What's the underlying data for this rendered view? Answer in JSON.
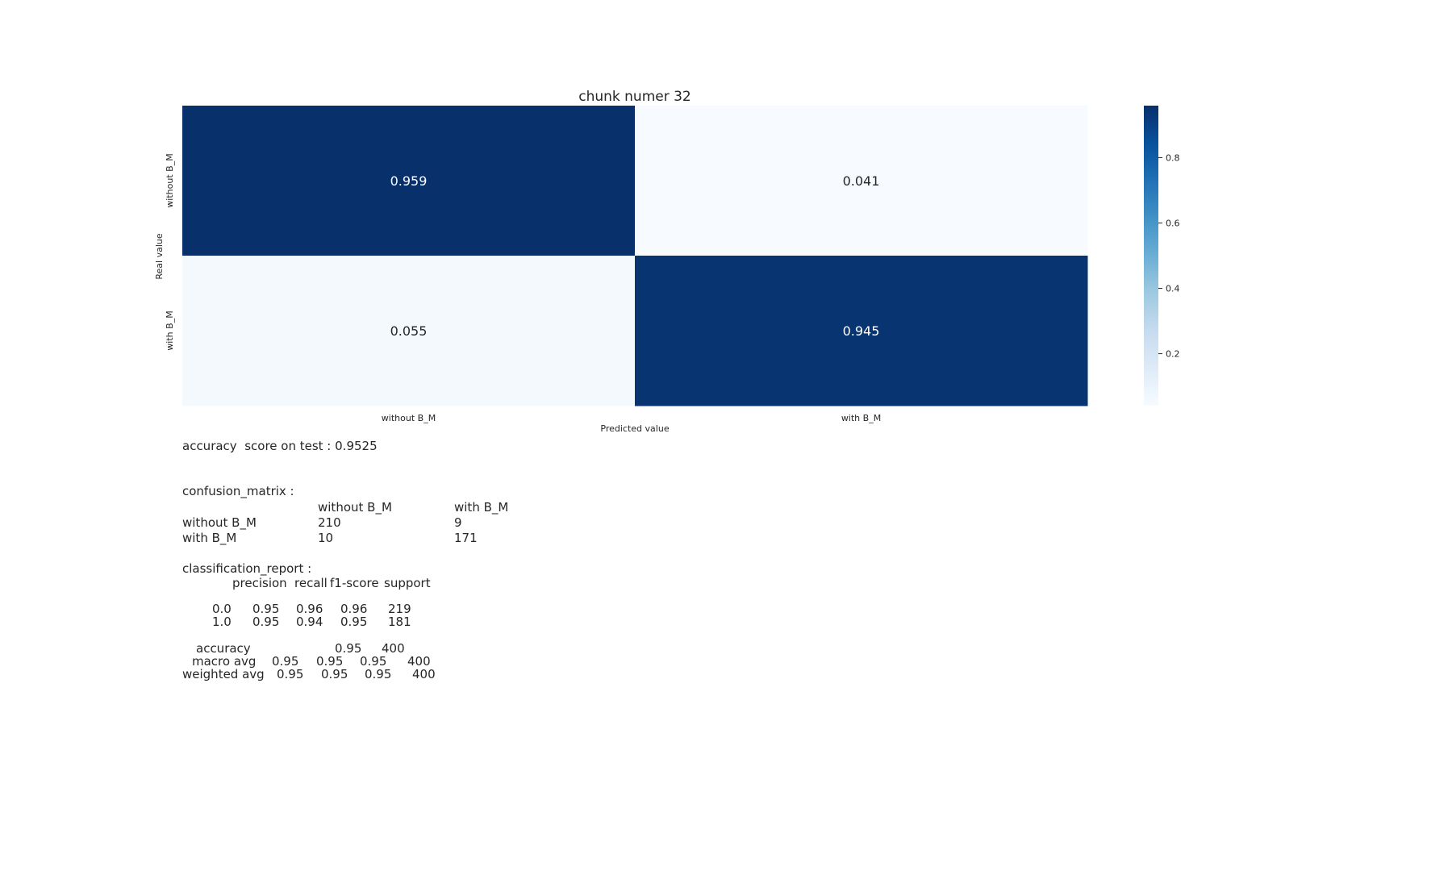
{
  "chart_data": {
    "type": "heatmap",
    "title": "chunk numer 32",
    "xlabel": "Predicted value",
    "ylabel": "Real value",
    "x_categories": [
      "without B_M",
      "with B_M"
    ],
    "y_categories": [
      "without B_M",
      "with B_M"
    ],
    "values": [
      [
        0.959,
        0.041
      ],
      [
        0.055,
        0.945
      ]
    ],
    "value_labels": [
      [
        "0.959",
        "0.041"
      ],
      [
        "0.055",
        "0.945"
      ]
    ],
    "colormap": "Blues",
    "colorbar": {
      "range": [
        0.041,
        0.959
      ],
      "ticks": [
        0.2,
        0.4,
        0.6,
        0.8
      ],
      "tick_labels": [
        "0.2",
        "0.4",
        "0.6",
        "0.8"
      ]
    }
  },
  "report": {
    "accuracy_line": "accuracy  score on test : 0.9525",
    "confusion_title": "confusion_matrix :",
    "confusion_header": [
      "without B_M",
      "with B_M"
    ],
    "confusion_rows": [
      {
        "label": "without B_M",
        "values": [
          "210",
          "9"
        ]
      },
      {
        "label": "with B_M",
        "values": [
          "10",
          "171"
        ]
      }
    ],
    "classification_title": "classification_report :",
    "classification_header": [
      "precision",
      "recall",
      "f1-score",
      "support"
    ],
    "classification_rows": [
      {
        "label": "0.0",
        "values": [
          "0.95",
          "0.96",
          "0.96",
          "219"
        ]
      },
      {
        "label": "1.0",
        "values": [
          "0.95",
          "0.94",
          "0.95",
          "181"
        ]
      }
    ],
    "summary_rows": [
      {
        "label": "accuracy",
        "values": [
          "",
          "",
          "0.95",
          "400"
        ]
      },
      {
        "label": "macro avg",
        "values": [
          "0.95",
          "0.95",
          "0.95",
          "400"
        ]
      },
      {
        "label": "weighted avg",
        "values": [
          "0.95",
          "0.95",
          "0.95",
          "400"
        ]
      }
    ]
  },
  "colors": {
    "dark": "#08306b",
    "light": "#f7fbff"
  }
}
